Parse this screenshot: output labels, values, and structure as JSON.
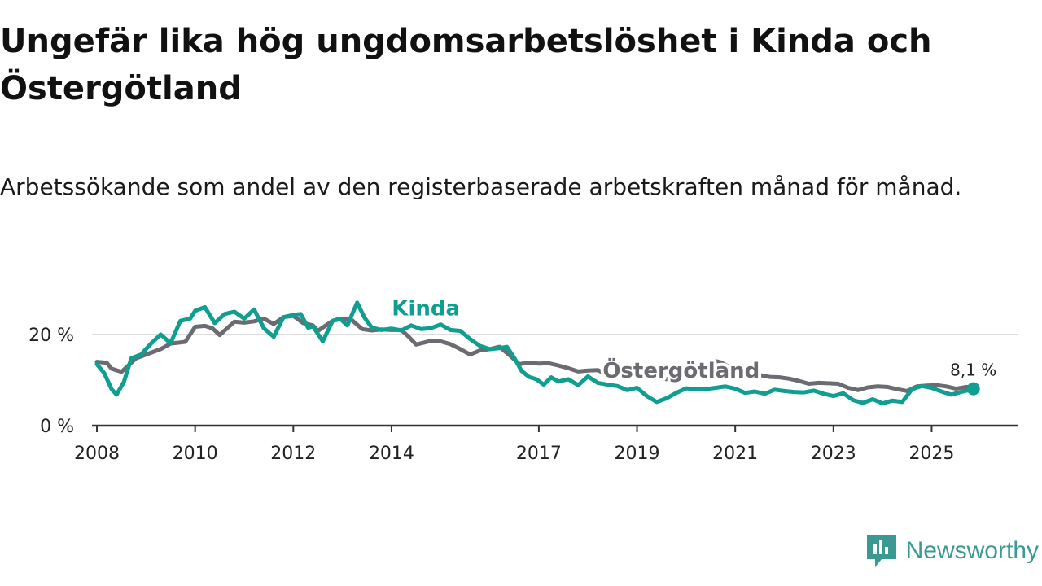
{
  "title": "Ungefär lika hög ungdomsarbetslöshet i Kinda och Östergötland",
  "subtitle": "Arbetssökande som andel av den registerbaserade arbetskraften månad för månad.",
  "brand": {
    "name": "Newsworthy",
    "icon": "newsworthy-logo-icon"
  },
  "colors": {
    "kinda": "#0f9e90",
    "ostergotland": "#6d6b72",
    "grid": "#dddddd",
    "axis": "#333333"
  },
  "chart_data": {
    "type": "line",
    "title": "Ungefär lika hög ungdomsarbetslöshet i Kinda och Östergötland",
    "xlabel": "",
    "ylabel": "",
    "xlim": [
      2007.9,
      2026.75
    ],
    "ylim": [
      0,
      30
    ],
    "grid": "horizontal",
    "yticks": [
      {
        "value": 0,
        "label": "0 %"
      },
      {
        "value": 20,
        "label": "20 %"
      }
    ],
    "xticks": [
      {
        "value": 2008,
        "label": "2008"
      },
      {
        "value": 2010,
        "label": "2010"
      },
      {
        "value": 2012,
        "label": "2012"
      },
      {
        "value": 2014,
        "label": "2014"
      },
      {
        "value": 2017,
        "label": "2017"
      },
      {
        "value": 2019,
        "label": "2019"
      },
      {
        "value": 2021,
        "label": "2021"
      },
      {
        "value": 2023,
        "label": "2023"
      },
      {
        "value": 2025,
        "label": "2025"
      }
    ],
    "series": [
      {
        "name": "Östergötland",
        "label": "Östergötland",
        "color": "#6d6b72",
        "label_at": [
          2019.9,
          10.5
        ],
        "x": [
          2008.0,
          2008.2,
          2008.3,
          2008.5,
          2008.8,
          2009.0,
          2009.3,
          2009.5,
          2009.8,
          2010.0,
          2010.2,
          2010.35,
          2010.5,
          2010.8,
          2011.0,
          2011.2,
          2011.4,
          2011.6,
          2011.8,
          2012.0,
          2012.2,
          2012.4,
          2012.5,
          2012.8,
          2013.0,
          2013.2,
          2013.4,
          2013.6,
          2013.8,
          2014.0,
          2014.2,
          2014.35,
          2014.5,
          2014.8,
          2015.0,
          2015.2,
          2015.4,
          2015.6,
          2015.8,
          2016.0,
          2016.2,
          2016.4,
          2016.6,
          2016.8,
          2017.0,
          2017.2,
          2017.4,
          2017.6,
          2017.8,
          2018.0,
          2018.2,
          2018.4,
          2018.6,
          2018.8,
          2019.0,
          2019.2,
          2019.4,
          2019.6,
          2019.8,
          2020.0,
          2020.2,
          2020.4,
          2020.55,
          2020.7,
          2020.9,
          2021.1,
          2021.3,
          2021.5,
          2021.7,
          2021.9,
          2022.1,
          2022.3,
          2022.5,
          2022.7,
          2022.9,
          2023.1,
          2023.3,
          2023.5,
          2023.7,
          2023.9,
          2024.1,
          2024.3,
          2024.5,
          2024.7,
          2024.9,
          2025.1,
          2025.3,
          2025.5,
          2025.7,
          2025.85
        ],
        "values": [
          14.0,
          13.8,
          12.5,
          11.8,
          14.8,
          15.6,
          16.8,
          18.0,
          18.4,
          21.7,
          21.9,
          21.4,
          19.9,
          22.8,
          22.6,
          22.9,
          23.5,
          22.3,
          23.8,
          24.1,
          22.5,
          22.0,
          20.8,
          23.0,
          23.5,
          23.1,
          21.2,
          20.9,
          21.1,
          21.0,
          21.0,
          19.5,
          17.8,
          18.6,
          18.5,
          17.9,
          16.8,
          15.6,
          16.5,
          16.8,
          17.3,
          15.5,
          13.5,
          13.8,
          13.6,
          13.7,
          13.2,
          12.6,
          11.9,
          12.1,
          12.2,
          11.2,
          10.8,
          11.0,
          11.3,
          11.0,
          11.4,
          10.2,
          10.3,
          11.8,
          11.6,
          12.1,
          14.3,
          13.9,
          12.8,
          12.6,
          12.3,
          11.1,
          10.7,
          10.6,
          10.3,
          9.8,
          9.2,
          9.4,
          9.3,
          9.2,
          8.3,
          7.8,
          8.4,
          8.6,
          8.5,
          8.0,
          7.6,
          8.6,
          8.8,
          8.9,
          8.6,
          8.1,
          8.5,
          8.4
        ]
      },
      {
        "name": "Kinda",
        "label": "Kinda",
        "color": "#0f9e90",
        "label_at": [
          2014.7,
          24.2
        ],
        "end_label": "8,1 %",
        "x": [
          2008.0,
          2008.15,
          2008.3,
          2008.4,
          2008.55,
          2008.7,
          2008.9,
          2009.1,
          2009.3,
          2009.5,
          2009.7,
          2009.9,
          2010.0,
          2010.2,
          2010.4,
          2010.6,
          2010.8,
          2011.0,
          2011.2,
          2011.4,
          2011.6,
          2011.8,
          2012.0,
          2012.15,
          2012.3,
          2012.4,
          2012.6,
          2012.8,
          2012.95,
          2013.1,
          2013.3,
          2013.45,
          2013.6,
          2013.8,
          2014.0,
          2014.2,
          2014.4,
          2014.6,
          2014.8,
          2015.0,
          2015.2,
          2015.4,
          2015.6,
          2015.8,
          2016.0,
          2016.2,
          2016.35,
          2016.5,
          2016.65,
          2016.8,
          2016.95,
          2017.1,
          2017.25,
          2017.4,
          2017.6,
          2017.8,
          2018.0,
          2018.2,
          2018.4,
          2018.6,
          2018.8,
          2019.0,
          2019.2,
          2019.4,
          2019.6,
          2019.8,
          2020.0,
          2020.2,
          2020.4,
          2020.6,
          2020.8,
          2021.0,
          2021.2,
          2021.4,
          2021.6,
          2021.8,
          2022.0,
          2022.2,
          2022.4,
          2022.6,
          2022.8,
          2023.0,
          2023.2,
          2023.4,
          2023.6,
          2023.8,
          2024.0,
          2024.2,
          2024.4,
          2024.6,
          2024.8,
          2025.0,
          2025.2,
          2025.4,
          2025.6,
          2025.8,
          2025.85
        ],
        "values": [
          13.5,
          11.5,
          8.0,
          6.8,
          9.6,
          14.8,
          15.6,
          18.0,
          20.0,
          18.1,
          23.0,
          23.5,
          25.2,
          26.0,
          22.5,
          24.5,
          25.0,
          23.5,
          25.5,
          21.4,
          19.5,
          23.8,
          24.3,
          24.5,
          21.5,
          21.8,
          18.5,
          23.0,
          23.5,
          22.0,
          27.0,
          23.7,
          21.5,
          21.0,
          21.3,
          20.9,
          22.0,
          21.2,
          21.4,
          22.2,
          21.0,
          20.8,
          19.0,
          17.5,
          16.8,
          17.0,
          17.3,
          14.9,
          12.0,
          10.7,
          10.2,
          9.0,
          10.6,
          9.7,
          10.2,
          8.9,
          10.8,
          9.4,
          9.0,
          8.7,
          7.8,
          8.3,
          6.5,
          5.2,
          6.0,
          7.2,
          8.2,
          8.0,
          8.0,
          8.3,
          8.6,
          8.1,
          7.2,
          7.5,
          7.0,
          7.9,
          7.6,
          7.4,
          7.3,
          7.7,
          7.0,
          6.5,
          7.1,
          5.6,
          5.0,
          5.8,
          4.9,
          5.5,
          5.2,
          8.0,
          8.7,
          8.3,
          7.5,
          6.8,
          7.4,
          7.9,
          8.1
        ]
      }
    ]
  }
}
